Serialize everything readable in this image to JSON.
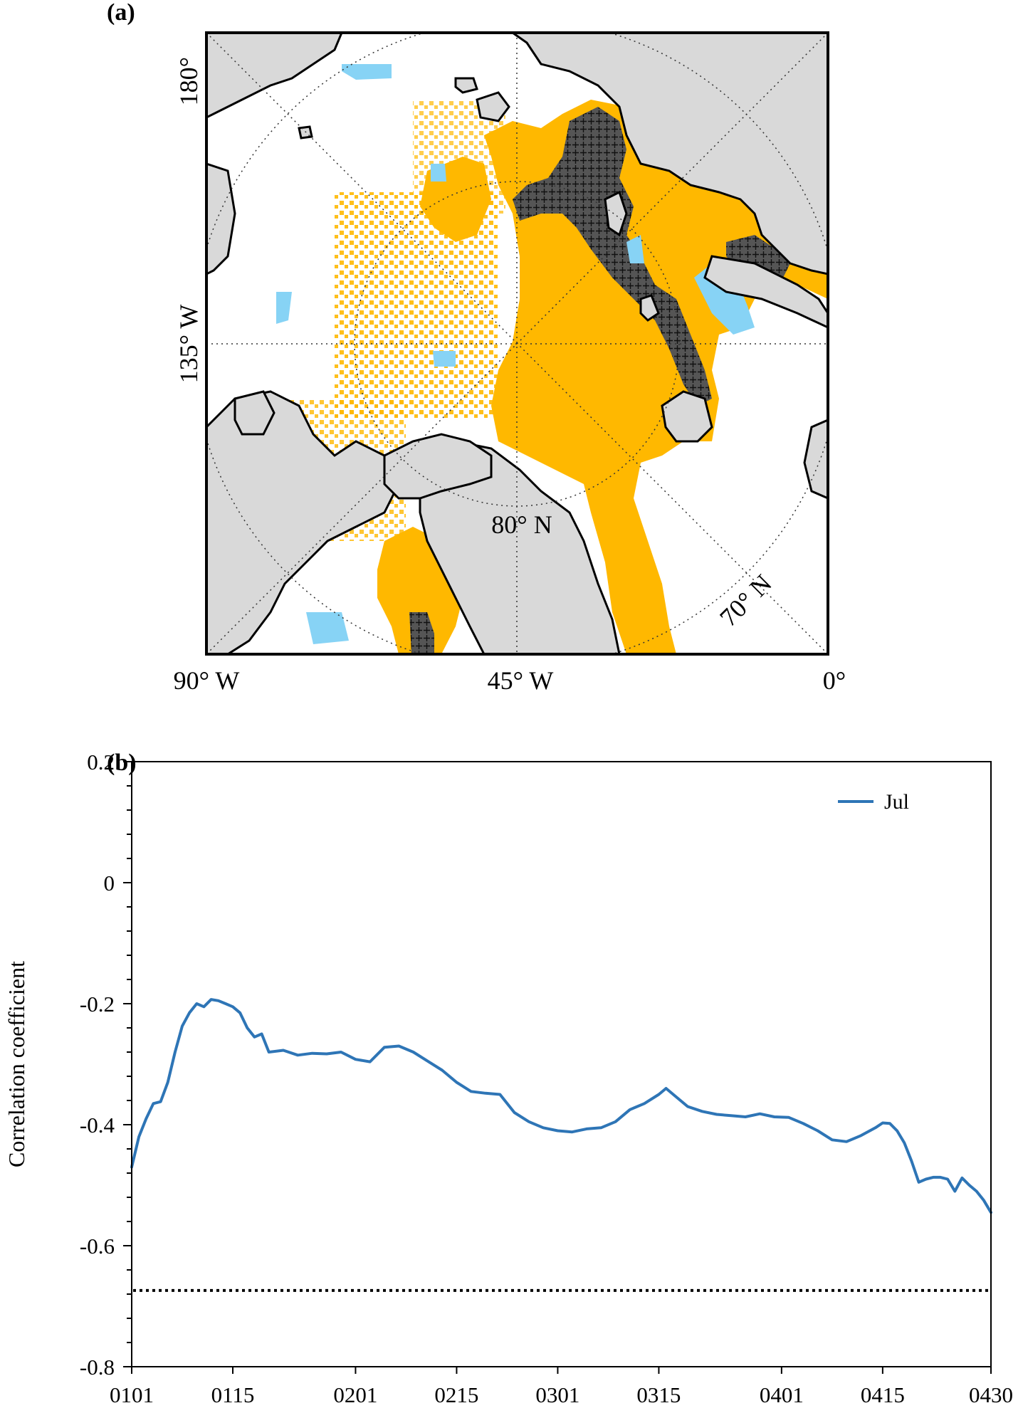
{
  "panel_a": {
    "label": "(a)",
    "lon_labels": {
      "top": "180°",
      "left": "135° W",
      "bottom_left": "90° W",
      "bottom_mid": "45° W",
      "bottom_right": "0°"
    },
    "lat_labels": {
      "inner": "80° N",
      "outer": "70° N"
    },
    "colors": {
      "land": "#d9d9d9",
      "positive": "#ffb800",
      "negative": "#87d3f5",
      "coast": "#000000"
    }
  },
  "panel_b": {
    "label": "(b)"
  },
  "chart_data": {
    "type": "line",
    "xlabel": "",
    "ylabel": "Correlation coefficient",
    "ylim": [
      -0.8,
      0.2
    ],
    "yticks": [
      -0.8,
      -0.6,
      -0.4,
      -0.2,
      0,
      0.2
    ],
    "ytick_labels": [
      "-0.8",
      "-0.6",
      "-0.4",
      "-0.2",
      "0",
      "0.2"
    ],
    "xticks": [
      "0101",
      "0115",
      "0201",
      "0215",
      "0301",
      "0315",
      "0401",
      "0415",
      "0430"
    ],
    "xtick_days": [
      1,
      15,
      32,
      46,
      60,
      74,
      91,
      105,
      120
    ],
    "threshold": -0.674,
    "legend": {
      "position": "top-right",
      "label": "Jul"
    },
    "series": [
      {
        "name": "Jul",
        "color": "#2e75b6",
        "x": [
          1,
          2,
          3,
          4,
          5,
          6,
          7,
          8,
          9,
          10,
          11,
          12,
          13,
          14,
          15,
          16,
          17,
          18,
          19,
          20,
          22,
          24,
          26,
          28,
          30,
          32,
          34,
          36,
          38,
          40,
          42,
          44,
          46,
          48,
          50,
          52,
          54,
          56,
          58,
          60,
          62,
          64,
          66,
          68,
          70,
          72,
          74,
          75,
          76,
          78,
          80,
          82,
          84,
          86,
          88,
          90,
          92,
          94,
          96,
          98,
          100,
          102,
          104,
          105,
          106,
          107,
          108,
          109,
          110,
          111,
          112,
          113,
          114,
          115,
          116,
          117,
          118,
          119,
          120
        ],
        "values": [
          -0.47,
          -0.42,
          -0.39,
          -0.365,
          -0.362,
          -0.33,
          -0.28,
          -0.237,
          -0.215,
          -0.2,
          -0.205,
          -0.193,
          -0.195,
          -0.2,
          -0.205,
          -0.215,
          -0.24,
          -0.255,
          -0.25,
          -0.28,
          -0.277,
          -0.285,
          -0.282,
          -0.283,
          -0.28,
          -0.292,
          -0.296,
          -0.272,
          -0.27,
          -0.28,
          -0.295,
          -0.31,
          -0.33,
          -0.345,
          -0.348,
          -0.35,
          -0.38,
          -0.395,
          -0.405,
          -0.41,
          -0.412,
          -0.407,
          -0.405,
          -0.395,
          -0.375,
          -0.365,
          -0.35,
          -0.34,
          -0.35,
          -0.37,
          -0.378,
          -0.383,
          -0.385,
          -0.387,
          -0.382,
          -0.387,
          -0.388,
          -0.398,
          -0.41,
          -0.425,
          -0.428,
          -0.418,
          -0.405,
          -0.397,
          -0.398,
          -0.41,
          -0.43,
          -0.46,
          -0.495,
          -0.49,
          -0.487,
          -0.487,
          -0.49,
          -0.51,
          -0.488,
          -0.5,
          -0.51,
          -0.525,
          -0.545
        ]
      }
    ]
  }
}
